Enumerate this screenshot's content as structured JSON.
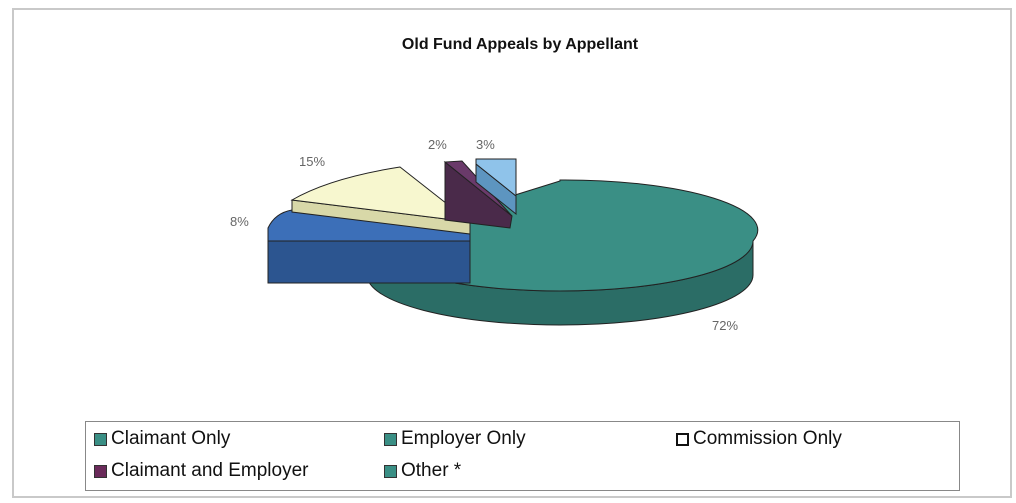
{
  "chart_data": {
    "type": "pie",
    "title": "Old Fund Appeals by Appellant",
    "slices": [
      {
        "label": "72%",
        "value": 72,
        "top": "#3a8f85",
        "side": "#2b6d66"
      },
      {
        "label": "8%",
        "value": 8,
        "top": "#3c6fb8",
        "side": "#2c5590"
      },
      {
        "label": "15%",
        "value": 15,
        "top": "#f7f7cf",
        "side": "#d8d8a8"
      },
      {
        "label": "2%",
        "value": 2,
        "top": "#6a3a6a",
        "side": "#4a2a4a"
      },
      {
        "label": "3%",
        "value": 3,
        "top": "#8fc3ea",
        "side": "#5d95c0"
      }
    ],
    "legend": [
      {
        "label": "Claimant Only",
        "color": "#3a8f85"
      },
      {
        "label": "Employer Only",
        "color": "#3a8f85"
      },
      {
        "label": "Commission Only",
        "color": "#ffffff"
      },
      {
        "label": "Claimant and Employer",
        "color": "#6a2a5a"
      },
      {
        "label": "Other *",
        "color": "#3a8f85"
      }
    ]
  }
}
